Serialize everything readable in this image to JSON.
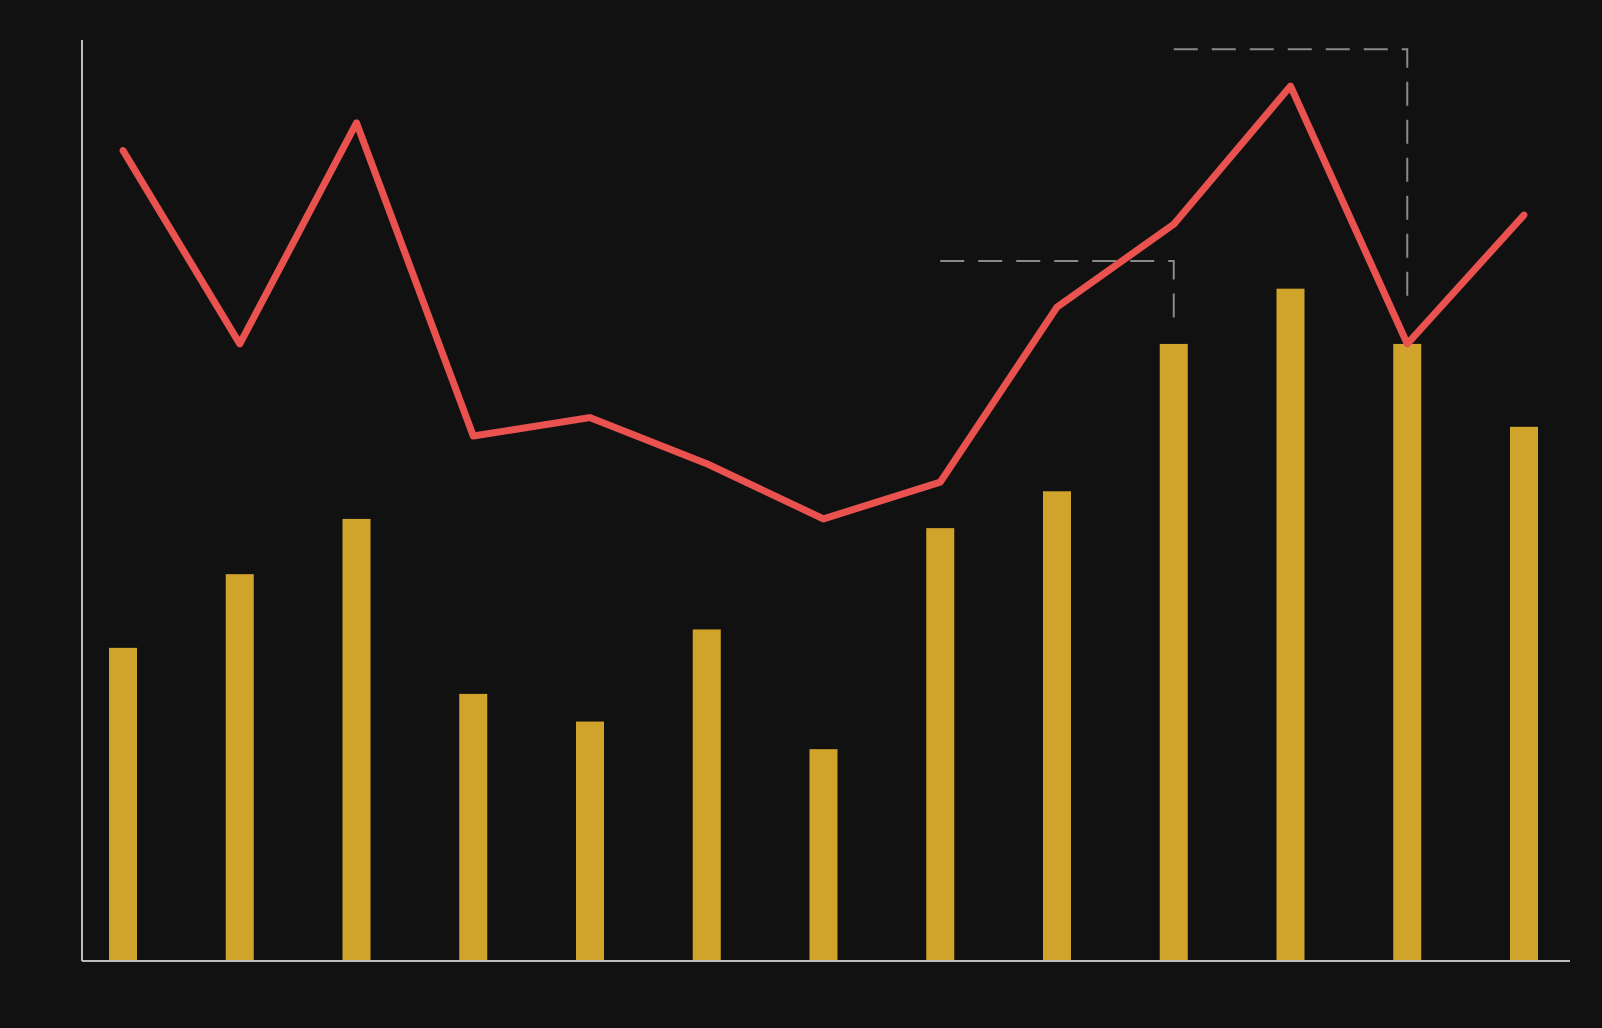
{
  "chart_data": {
    "type": "bar",
    "title": "",
    "xlabel": "",
    "ylabel": "",
    "categories": [
      "",
      "",
      "",
      "",
      "",
      "",
      "",
      "",
      "",
      "",
      "",
      "",
      ""
    ],
    "grid": false,
    "series": [
      {
        "kind": "bar",
        "values": [
          34,
          42,
          48,
          29,
          26,
          36,
          23,
          47,
          51,
          67,
          73,
          67,
          58
        ],
        "color": "#D0A42A"
      },
      {
        "kind": "line",
        "values": [
          88,
          67,
          91,
          57,
          59,
          54,
          48,
          52,
          71,
          80,
          95,
          67,
          81
        ],
        "color": "#E9524F"
      }
    ],
    "ylim": [
      0,
      100
    ],
    "annotations": [
      {
        "type": "dashed-bracket",
        "from_index": 7,
        "to_index": 9,
        "level": 76,
        "drop_to": 69
      },
      {
        "type": "dashed-bracket",
        "from_index": 9,
        "to_index": 11,
        "level": 99,
        "drop_to": 72
      }
    ],
    "colors": {
      "background": "#111111",
      "axis": "#BBBBBB",
      "annotation": "#8A8A8A"
    }
  }
}
